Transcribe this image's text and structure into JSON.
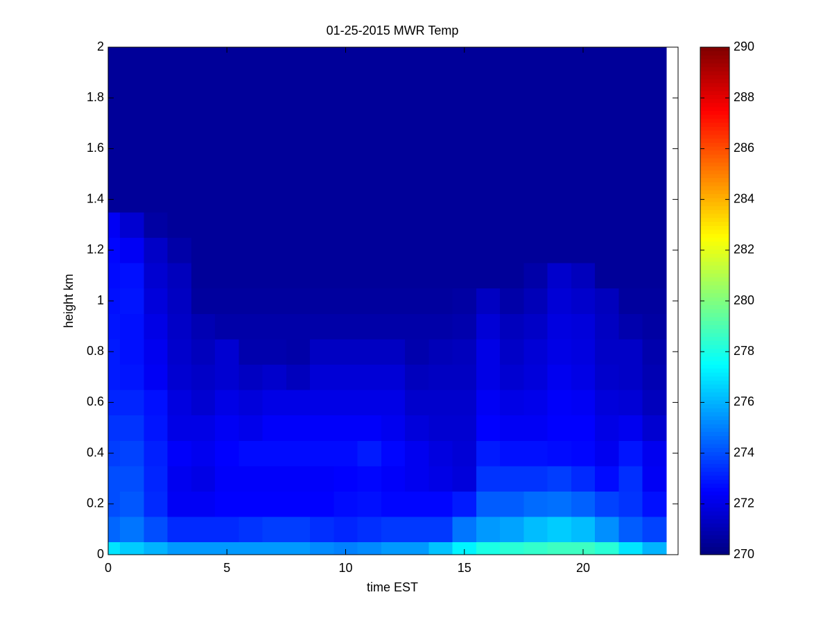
{
  "chart_data": {
    "type": "heatmap",
    "title": "01-25-2015 MWR Temp",
    "x_label": "time EST",
    "y_label": "height km",
    "colormap": "jet",
    "clim": [
      270,
      290
    ],
    "cticks": [
      270,
      272,
      274,
      276,
      278,
      280,
      282,
      284,
      286,
      288,
      290
    ],
    "xlim": [
      0,
      24
    ],
    "xticks": [
      0,
      5,
      10,
      15,
      20
    ],
    "ylim": [
      0,
      2
    ],
    "yticks": [
      0,
      0.2,
      0.4,
      0.6,
      0.8,
      1,
      1.2,
      1.4,
      1.6,
      1.8,
      2
    ],
    "x_bins": [
      0,
      0.5,
      1.5,
      2.5,
      3.5,
      4.5,
      5.5,
      6.5,
      7.5,
      8.5,
      9.5,
      10.5,
      11.5,
      12.5,
      13.5,
      14.5,
      15.5,
      16.5,
      17.5,
      18.5,
      19.5,
      20.5,
      21.5,
      22.5,
      23.5
    ],
    "y_bins": [
      0,
      0.05,
      0.15,
      0.25,
      0.35,
      0.45,
      0.55,
      0.65,
      0.75,
      0.85,
      0.95,
      1.05,
      1.15,
      1.25,
      1.35,
      2
    ],
    "z": [
      [
        277.0,
        276.5,
        276.0,
        275.5,
        275.5,
        275.5,
        275.5,
        275.5,
        275.5,
        275.2,
        275.0,
        275.2,
        275.5,
        275.5,
        276.3,
        277.3,
        278.0,
        278.3,
        278.5,
        278.7,
        278.7,
        278.3,
        277.0,
        276.0
      ],
      [
        274.5,
        274.8,
        274.0,
        273.3,
        273.3,
        273.3,
        273.5,
        273.7,
        273.7,
        273.4,
        273.2,
        273.4,
        273.6,
        273.6,
        273.6,
        274.8,
        275.5,
        275.7,
        276.2,
        276.5,
        276.2,
        275.3,
        274.3,
        273.8
      ],
      [
        274.0,
        274.2,
        273.3,
        272.3,
        272.3,
        272.5,
        272.5,
        272.5,
        272.5,
        272.5,
        272.7,
        272.8,
        272.6,
        272.6,
        272.6,
        273.0,
        274.3,
        274.3,
        274.6,
        274.7,
        274.4,
        273.8,
        273.5,
        272.8
      ],
      [
        274.0,
        274.0,
        273.2,
        272.2,
        272.0,
        272.4,
        272.4,
        272.4,
        272.4,
        272.4,
        272.5,
        272.6,
        272.4,
        272.2,
        272.0,
        271.8,
        273.5,
        273.5,
        273.5,
        273.7,
        273.3,
        272.7,
        273.4,
        272.3
      ],
      [
        273.7,
        273.8,
        273.1,
        272.4,
        272.2,
        272.5,
        272.7,
        272.7,
        272.7,
        272.7,
        272.7,
        273.0,
        272.6,
        272.2,
        271.9,
        271.7,
        273.0,
        272.8,
        272.8,
        272.7,
        272.6,
        272.2,
        272.9,
        272.2
      ],
      [
        273.5,
        273.5,
        272.9,
        272.0,
        272.0,
        272.3,
        272.1,
        272.4,
        272.4,
        272.4,
        272.4,
        272.4,
        272.2,
        271.8,
        271.6,
        271.6,
        272.5,
        272.3,
        272.3,
        272.5,
        272.5,
        272.0,
        272.2,
        271.6
      ],
      [
        273.2,
        273.2,
        272.8,
        271.9,
        271.6,
        272.0,
        271.8,
        272.0,
        272.0,
        272.0,
        272.0,
        272.0,
        272.0,
        271.5,
        271.5,
        271.5,
        272.3,
        272.0,
        272.1,
        272.4,
        272.3,
        271.8,
        271.7,
        271.2
      ],
      [
        273.0,
        272.9,
        272.3,
        271.6,
        271.4,
        271.6,
        271.3,
        271.5,
        271.2,
        271.7,
        271.7,
        271.7,
        271.7,
        271.2,
        271.3,
        271.3,
        272.0,
        271.6,
        271.8,
        272.2,
        272.0,
        271.5,
        271.4,
        271.0
      ],
      [
        273.0,
        272.8,
        272.2,
        271.5,
        271.2,
        271.6,
        270.9,
        270.9,
        270.8,
        271.3,
        271.3,
        271.3,
        271.3,
        270.9,
        271.1,
        271.2,
        272.0,
        271.4,
        271.7,
        272.0,
        271.9,
        271.4,
        271.4,
        270.9
      ],
      [
        272.9,
        272.8,
        272.0,
        271.4,
        271.0,
        270.8,
        270.8,
        270.8,
        270.8,
        270.8,
        270.8,
        270.8,
        270.8,
        270.8,
        270.8,
        270.9,
        271.7,
        271.2,
        271.4,
        271.9,
        271.8,
        271.3,
        270.9,
        270.7
      ],
      [
        272.8,
        272.9,
        271.8,
        271.3,
        270.6,
        270.6,
        270.6,
        270.6,
        270.6,
        270.6,
        270.6,
        270.6,
        270.6,
        270.6,
        270.6,
        270.7,
        271.3,
        270.8,
        271.1,
        271.7,
        271.5,
        271.2,
        270.6,
        270.6
      ],
      [
        272.7,
        272.8,
        271.6,
        271.2,
        270.5,
        270.5,
        270.5,
        270.5,
        270.5,
        270.5,
        270.5,
        270.5,
        270.5,
        270.5,
        270.5,
        270.5,
        270.5,
        270.5,
        270.8,
        271.5,
        271.2,
        270.5,
        270.5,
        270.5
      ],
      [
        272.6,
        272.3,
        271.4,
        270.8,
        270.5,
        270.5,
        270.5,
        270.5,
        270.5,
        270.5,
        270.5,
        270.5,
        270.5,
        270.5,
        270.5,
        270.5,
        270.5,
        270.5,
        270.5,
        270.5,
        270.5,
        270.5,
        270.5,
        270.5
      ],
      [
        272.3,
        271.6,
        270.7,
        270.5,
        270.5,
        270.5,
        270.5,
        270.5,
        270.5,
        270.5,
        270.5,
        270.5,
        270.5,
        270.5,
        270.5,
        270.5,
        270.5,
        270.5,
        270.5,
        270.5,
        270.5,
        270.5,
        270.5,
        270.5
      ],
      [
        270.5,
        270.5,
        270.5,
        270.5,
        270.5,
        270.5,
        270.5,
        270.5,
        270.5,
        270.5,
        270.5,
        270.5,
        270.5,
        270.5,
        270.5,
        270.5,
        270.5,
        270.5,
        270.5,
        270.5,
        270.5,
        270.5,
        270.5,
        270.5
      ]
    ]
  }
}
